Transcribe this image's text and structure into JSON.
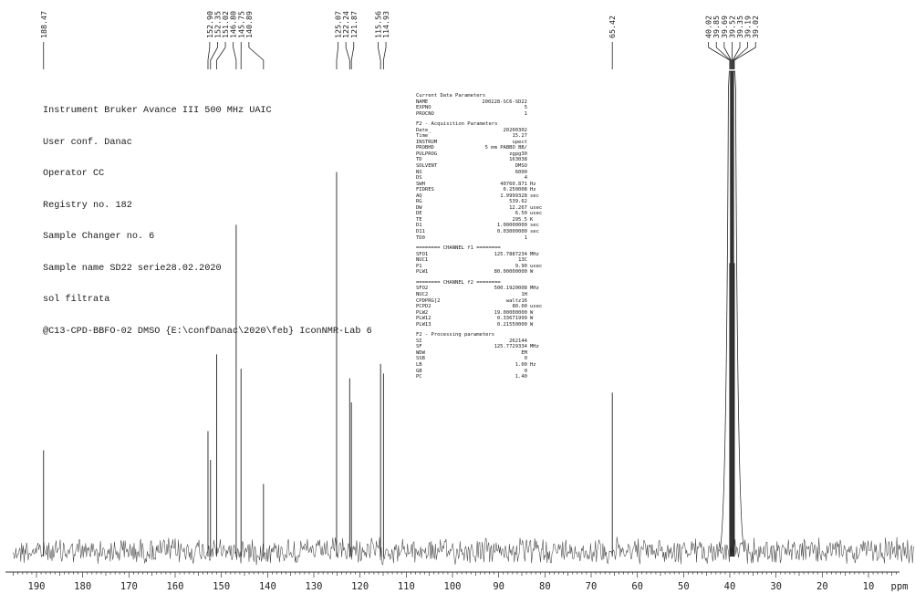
{
  "info_lines": [
    "Instrument Bruker Avance III 500 MHz UAIC",
    "User conf. Danac",
    "Operator CC",
    "Registry no. 182",
    "Sample Changer no. 6",
    "Sample name SD22 serie28.02.2020",
    "sol filtrata",
    "@C13-CPD-BBFO-02 DMSO {E:\\confDanac\\2020\\feb} IconNMR-Lab 6"
  ],
  "parameters": {
    "current": {
      "title": "Current Data Parameters",
      "rows": [
        {
          "k": "NAME",
          "v": "200228-SC6-SD22",
          "u": ""
        },
        {
          "k": "EXPNO",
          "v": "5",
          "u": ""
        },
        {
          "k": "PROCNO",
          "v": "1",
          "u": ""
        }
      ]
    },
    "acquisition": {
      "title": "F2 - Acquisition Parameters",
      "rows": [
        {
          "k": "Date_",
          "v": "20200302",
          "u": ""
        },
        {
          "k": "Time",
          "v": "15.27",
          "u": ""
        },
        {
          "k": "INSTRUM",
          "v": "spect",
          "u": ""
        },
        {
          "k": "PROBHD",
          "v": "5 mm PABBO BB/",
          "u": ""
        },
        {
          "k": "PULPROG",
          "v": "zgpg30",
          "u": ""
        },
        {
          "k": "TD",
          "v": "163038",
          "u": ""
        },
        {
          "k": "SOLVENT",
          "v": "DMSO",
          "u": ""
        },
        {
          "k": "NS",
          "v": "6000",
          "u": ""
        },
        {
          "k": "DS",
          "v": "4",
          "u": ""
        },
        {
          "k": "SWH",
          "v": "40760.871",
          "u": "Hz"
        },
        {
          "k": "FIDRES",
          "v": "0.250008",
          "u": "Hz"
        },
        {
          "k": "AQ",
          "v": "1.9999328",
          "u": "sec"
        },
        {
          "k": "RG",
          "v": "539.62",
          "u": ""
        },
        {
          "k": "DW",
          "v": "12.267",
          "u": "usec"
        },
        {
          "k": "DE",
          "v": "6.50",
          "u": "usec"
        },
        {
          "k": "TE",
          "v": "295.5",
          "u": "K"
        },
        {
          "k": "D1",
          "v": "1.00000000",
          "u": "sec"
        },
        {
          "k": "D11",
          "v": "0.03000000",
          "u": "sec"
        },
        {
          "k": "TD0",
          "v": "1",
          "u": ""
        }
      ]
    },
    "channel_f1": {
      "title": "======== CHANNEL f1 ========",
      "rows": [
        {
          "k": "SFO1",
          "v": "125.7887234",
          "u": "MHz"
        },
        {
          "k": "NUC1",
          "v": "13C",
          "u": ""
        },
        {
          "k": "P1",
          "v": "9.90",
          "u": "usec"
        },
        {
          "k": "PLW1",
          "v": "80.00000000",
          "u": "W"
        }
      ]
    },
    "channel_f2": {
      "title": "======== CHANNEL f2 ========",
      "rows": [
        {
          "k": "SFO2",
          "v": "500.1920008",
          "u": "MHz"
        },
        {
          "k": "NUC2",
          "v": "1H",
          "u": ""
        },
        {
          "k": "CPDPRG[2",
          "v": "waltz16",
          "u": ""
        },
        {
          "k": "PCPD2",
          "v": "80.00",
          "u": "usec"
        },
        {
          "k": "PLW2",
          "v": "19.00000000",
          "u": "W"
        },
        {
          "k": "PLW12",
          "v": "0.33671999",
          "u": "W"
        },
        {
          "k": "PLW13",
          "v": "0.21550000",
          "u": "W"
        }
      ]
    },
    "processing": {
      "title": "F2 - Processing parameters",
      "rows": [
        {
          "k": "SI",
          "v": "262144",
          "u": ""
        },
        {
          "k": "SF",
          "v": "125.7729334",
          "u": "MHz"
        },
        {
          "k": "WDW",
          "v": "EM",
          "u": ""
        },
        {
          "k": "SSB",
          "v": "0",
          "u": ""
        },
        {
          "k": "LB",
          "v": "1.00",
          "u": "Hz"
        },
        {
          "k": "GB",
          "v": "0",
          "u": ""
        },
        {
          "k": "PC",
          "v": "1.40",
          "u": ""
        }
      ]
    }
  },
  "chart_data": {
    "type": "line",
    "xlabel": "ppm",
    "xlim": [
      195,
      0
    ],
    "x_reversed": true,
    "x_ticks": [
      190,
      180,
      170,
      160,
      150,
      140,
      130,
      120,
      110,
      100,
      90,
      80,
      70,
      60,
      50,
      40,
      30,
      20,
      10
    ],
    "peak_labels": [
      "188.47",
      "152.90",
      "152.35",
      "151.02",
      "146.80",
      "145.75",
      "140.89",
      "125.07",
      "122.24",
      "121.87",
      "115.56",
      "114.93",
      "65.42",
      "40.02",
      "39.85",
      "39.69",
      "39.52",
      "39.35",
      "39.19",
      "39.02"
    ],
    "peaks": [
      {
        "ppm": 188.47,
        "height": 0.21
      },
      {
        "ppm": 152.9,
        "height": 0.25
      },
      {
        "ppm": 152.35,
        "height": 0.19
      },
      {
        "ppm": 151.02,
        "height": 0.41
      },
      {
        "ppm": 146.8,
        "height": 0.68
      },
      {
        "ppm": 145.75,
        "height": 0.38
      },
      {
        "ppm": 140.89,
        "height": 0.14
      },
      {
        "ppm": 125.07,
        "height": 0.79
      },
      {
        "ppm": 122.24,
        "height": 0.36
      },
      {
        "ppm": 121.87,
        "height": 0.31
      },
      {
        "ppm": 115.56,
        "height": 0.39
      },
      {
        "ppm": 114.93,
        "height": 0.37
      },
      {
        "ppm": 65.42,
        "height": 0.33
      },
      {
        "ppm": 40.02,
        "height": 0.6
      },
      {
        "ppm": 39.85,
        "height": 1.0
      },
      {
        "ppm": 39.69,
        "height": 1.0
      },
      {
        "ppm": 39.52,
        "height": 1.0
      },
      {
        "ppm": 39.35,
        "height": 1.0
      },
      {
        "ppm": 39.19,
        "height": 1.0
      },
      {
        "ppm": 39.02,
        "height": 0.6
      }
    ]
  }
}
